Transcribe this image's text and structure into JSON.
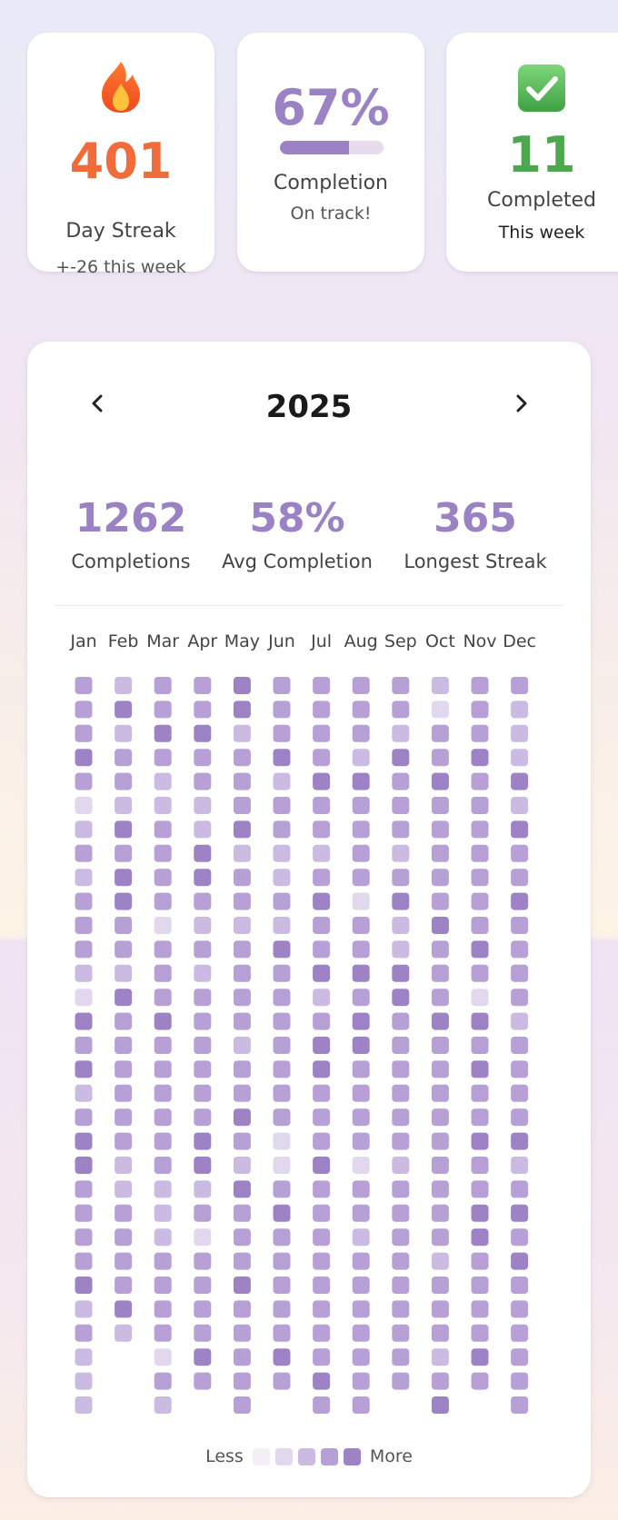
{
  "stats": {
    "streak": {
      "value": "401",
      "label": "Day Streak",
      "sub": "+-26 this week",
      "icon": "fire-icon"
    },
    "completion": {
      "value": "67%",
      "label": "Completion",
      "sub": "On track!",
      "progress": 0.67
    },
    "completed": {
      "value": "11",
      "label": "Completed",
      "sub": "This week",
      "icon": "check-box-icon"
    }
  },
  "calendar": {
    "year": "2025",
    "summary": [
      {
        "value": "1262",
        "label": "Completions"
      },
      {
        "value": "58%",
        "label": "Avg Completion"
      },
      {
        "value": "365",
        "label": "Longest Streak"
      }
    ],
    "months": [
      "Jan",
      "Feb",
      "Mar",
      "Apr",
      "May",
      "Jun",
      "Jul",
      "Aug",
      "Sep",
      "Oct",
      "Nov",
      "Dec"
    ],
    "month_days": [
      31,
      28,
      31,
      30,
      31,
      30,
      31,
      31,
      30,
      31,
      30,
      31
    ],
    "levels": [
      [
        3,
        3,
        3,
        4,
        3,
        1,
        2,
        3,
        2,
        3,
        3,
        3,
        2,
        1,
        4,
        3,
        4,
        2,
        3,
        4,
        4,
        3,
        3,
        3,
        3,
        4,
        2,
        3,
        2,
        2,
        2
      ],
      [
        2,
        4,
        2,
        3,
        3,
        2,
        4,
        3,
        4,
        4,
        3,
        3,
        2,
        4,
        3,
        3,
        3,
        3,
        3,
        3,
        2,
        2,
        3,
        3,
        3,
        3,
        4,
        2
      ],
      [
        3,
        3,
        4,
        3,
        2,
        2,
        3,
        3,
        3,
        3,
        1,
        3,
        3,
        3,
        4,
        3,
        3,
        3,
        3,
        3,
        3,
        2,
        2,
        2,
        3,
        3,
        3,
        3,
        1,
        3,
        2
      ],
      [
        3,
        3,
        4,
        3,
        3,
        2,
        2,
        4,
        4,
        3,
        2,
        3,
        2,
        3,
        3,
        3,
        3,
        3,
        3,
        4,
        4,
        2,
        3,
        1,
        3,
        3,
        3,
        3,
        4,
        3
      ],
      [
        4,
        4,
        2,
        3,
        3,
        3,
        4,
        2,
        3,
        3,
        2,
        3,
        3,
        3,
        3,
        2,
        3,
        3,
        4,
        3,
        2,
        4,
        3,
        3,
        3,
        4,
        3,
        3,
        3,
        3,
        3
      ],
      [
        3,
        3,
        3,
        4,
        2,
        3,
        3,
        2,
        2,
        3,
        2,
        4,
        3,
        3,
        3,
        3,
        3,
        3,
        3,
        1,
        1,
        3,
        4,
        3,
        3,
        3,
        3,
        3,
        4,
        3
      ],
      [
        3,
        3,
        3,
        3,
        4,
        3,
        3,
        2,
        3,
        4,
        3,
        3,
        4,
        2,
        3,
        4,
        4,
        3,
        3,
        3,
        4,
        3,
        3,
        3,
        3,
        3,
        3,
        3,
        3,
        4,
        3
      ],
      [
        3,
        3,
        3,
        2,
        4,
        3,
        3,
        3,
        3,
        1,
        3,
        3,
        4,
        3,
        4,
        4,
        3,
        3,
        3,
        3,
        1,
        3,
        3,
        2,
        3,
        3,
        3,
        3,
        3,
        3,
        3
      ],
      [
        3,
        3,
        2,
        4,
        3,
        3,
        3,
        2,
        3,
        4,
        2,
        2,
        4,
        4,
        3,
        3,
        3,
        3,
        3,
        3,
        2,
        3,
        3,
        3,
        3,
        3,
        3,
        3,
        3,
        3
      ],
      [
        2,
        1,
        3,
        3,
        4,
        3,
        3,
        3,
        3,
        3,
        4,
        3,
        3,
        3,
        4,
        3,
        3,
        3,
        3,
        3,
        3,
        3,
        3,
        3,
        2,
        3,
        3,
        3,
        2,
        3,
        4
      ],
      [
        3,
        3,
        3,
        4,
        3,
        3,
        3,
        3,
        3,
        3,
        3,
        4,
        3,
        1,
        4,
        3,
        4,
        3,
        3,
        4,
        3,
        3,
        4,
        4,
        3,
        3,
        3,
        3,
        4,
        3
      ],
      [
        3,
        2,
        2,
        2,
        4,
        2,
        4,
        3,
        3,
        4,
        3,
        3,
        3,
        3,
        2,
        3,
        3,
        3,
        3,
        4,
        2,
        3,
        4,
        3,
        4,
        3,
        3,
        3,
        3,
        3,
        3
      ]
    ],
    "legend": {
      "less": "Less",
      "more": "More"
    },
    "colors": [
      "#f3eef7",
      "#e2d8ee",
      "#cbbbe2",
      "#b6a0d6",
      "#9d82c6"
    ]
  }
}
